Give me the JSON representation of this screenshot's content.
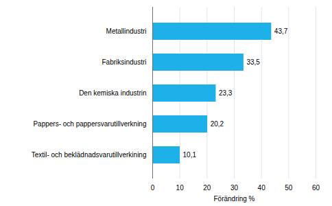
{
  "chart_data": {
    "type": "bar",
    "orientation": "horizontal",
    "categories": [
      "Textil- och beklädnadsvarutillverkining",
      "Pappers- och pappersvarutillverkning",
      "Den kemiska industrin",
      "Fabriksindustri",
      "Metallindustri"
    ],
    "values": [
      10.1,
      20.2,
      23.3,
      33.5,
      43.7
    ],
    "value_labels": [
      "10,1",
      "20,2",
      "23,3",
      "33,5",
      "43,7"
    ],
    "data_labels": true,
    "color": "#1eb0e8",
    "xlabel": "Förändring %",
    "xlim": [
      0,
      60
    ],
    "xticks": [
      0,
      10,
      20,
      30,
      40,
      50,
      60
    ],
    "grid": true
  }
}
